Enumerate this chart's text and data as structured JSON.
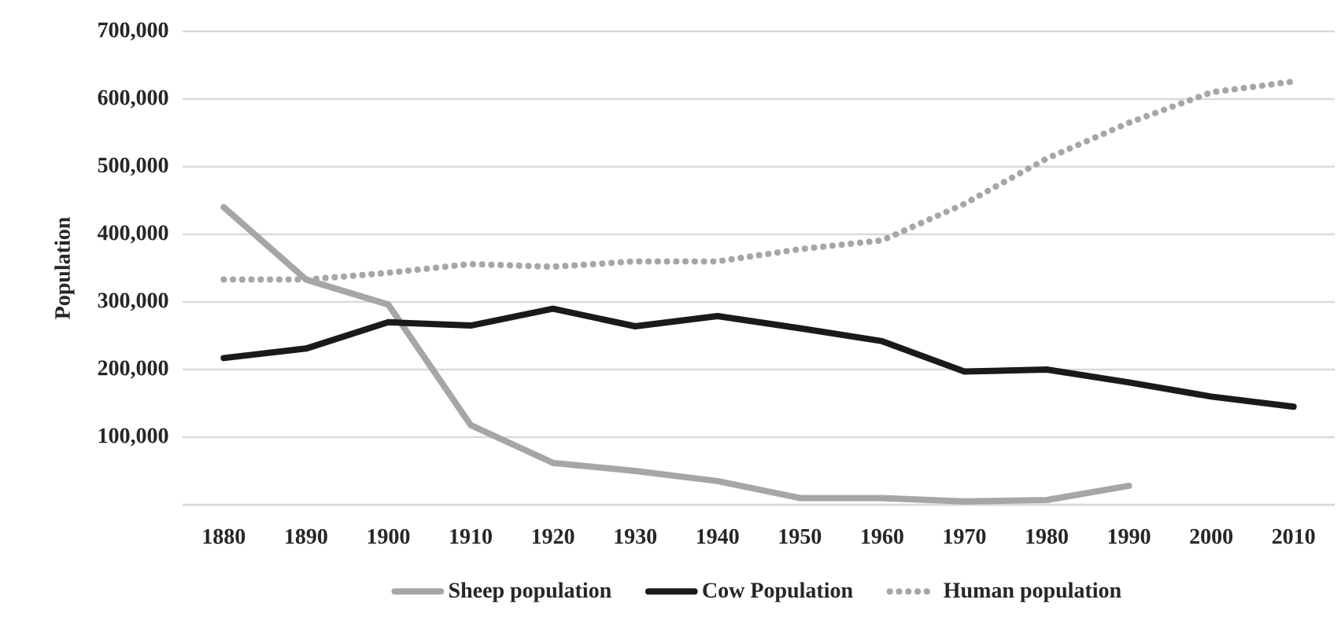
{
  "chart_data": {
    "type": "line",
    "ylabel": "Population",
    "categories": [
      "1880",
      "1890",
      "1900",
      "1910",
      "1920",
      "1930",
      "1940",
      "1950",
      "1960",
      "1970",
      "1980",
      "1990",
      "2000",
      "2010"
    ],
    "series": [
      {
        "name": "Sheep population",
        "color": "#a6a6a6",
        "line_style": "solid",
        "values": [
          440000,
          333000,
          296000,
          118000,
          62000,
          50000,
          35000,
          10000,
          10000,
          5000,
          7000,
          28000,
          null,
          null
        ]
      },
      {
        "name": "Cow Population",
        "color": "#1a1a1a",
        "line_style": "solid",
        "values": [
          217000,
          231000,
          270000,
          265000,
          290000,
          264000,
          279000,
          261000,
          242000,
          197000,
          200000,
          181000,
          160000,
          145000
        ]
      },
      {
        "name": "Human population",
        "color": "#a6a6a6",
        "line_style": "dotted",
        "values": [
          333000,
          333000,
          343000,
          356000,
          352000,
          360000,
          360000,
          378000,
          391000,
          445000,
          512000,
          565000,
          610000,
          626000
        ]
      }
    ],
    "ylim": [
      0,
      700000
    ],
    "yticks": [
      {
        "value": 0,
        "label": null
      },
      {
        "value": 100000,
        "label": "100,000"
      },
      {
        "value": 200000,
        "label": "200,000"
      },
      {
        "value": 300000,
        "label": "300,000"
      },
      {
        "value": 400000,
        "label": "400,000"
      },
      {
        "value": 500000,
        "label": "500,000"
      },
      {
        "value": 600000,
        "label": "600,000"
      },
      {
        "value": 700000,
        "label": "700,000"
      }
    ],
    "grid": "y",
    "legend": "bottom",
    "marker": "none"
  }
}
